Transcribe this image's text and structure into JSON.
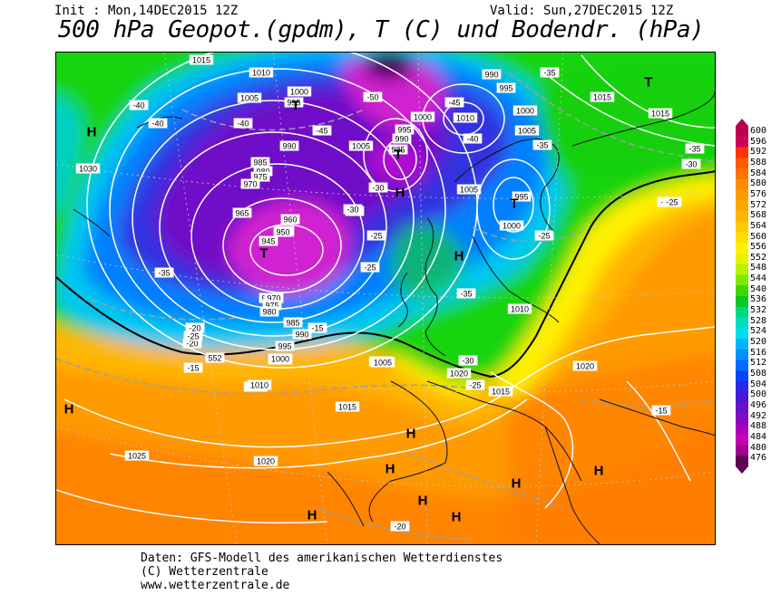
{
  "header": {
    "init": "Init : Mon,14DEC2015 12Z",
    "valid": "Valid: Sun,27DEC2015 12Z",
    "title": "500 hPa Geopot.(gpdm), T (C) und Bodendr. (hPa)"
  },
  "footer": {
    "line1": "Daten: GFS-Modell des amerikanischen Wetterdienstes",
    "line2": "(C) Wetterzentrale",
    "line3": "www.wetterzentrale.de"
  },
  "scale": {
    "values": [
      "600",
      "596",
      "592",
      "588",
      "584",
      "580",
      "576",
      "572",
      "568",
      "564",
      "560",
      "556",
      "552",
      "548",
      "544",
      "540",
      "536",
      "532",
      "528",
      "524",
      "520",
      "516",
      "512",
      "508",
      "504",
      "500",
      "496",
      "492",
      "488",
      "484",
      "480",
      "476"
    ],
    "colors": [
      "#b8004f",
      "#d0005a",
      "#ff3300",
      "#ff5a00",
      "#ff7200",
      "#ff8c00",
      "#ff9a00",
      "#ffa800",
      "#ffb600",
      "#ffc800",
      "#ffde00",
      "#fff200",
      "#e4f400",
      "#b8f000",
      "#7ee800",
      "#3ed800",
      "#0ac81e",
      "#00d880",
      "#00ddbb",
      "#00ddee",
      "#00b4ff",
      "#0090ff",
      "#006cff",
      "#0046ff",
      "#2828ee",
      "#4818d8",
      "#6810c8",
      "#8808c8",
      "#a800c0",
      "#c800b0",
      "#a00090",
      "#600050"
    ]
  },
  "pressure_labels": [
    {
      "t": "1015"
    },
    {
      "t": "1010"
    },
    {
      "t": "1005"
    },
    {
      "t": "1000"
    },
    {
      "t": "995"
    },
    {
      "t": "990"
    },
    {
      "t": "985"
    },
    {
      "t": "980"
    },
    {
      "t": "975"
    },
    {
      "t": "970"
    },
    {
      "t": "965"
    },
    {
      "t": "960"
    },
    {
      "t": "955"
    },
    {
      "t": "950"
    },
    {
      "t": "945"
    },
    {
      "t": "965"
    },
    {
      "t": "970"
    },
    {
      "t": "975"
    },
    {
      "t": "980"
    },
    {
      "t": "985"
    },
    {
      "t": "990"
    },
    {
      "t": "995"
    },
    {
      "t": "1000"
    },
    {
      "t": "1005"
    },
    {
      "t": "1010"
    },
    {
      "t": "1015"
    },
    {
      "t": "1020"
    },
    {
      "t": "1025"
    },
    {
      "t": "1030"
    },
    {
      "t": "990"
    },
    {
      "t": "995"
    },
    {
      "t": "1000"
    },
    {
      "t": "1005"
    },
    {
      "t": "1015"
    },
    {
      "t": "1015"
    },
    {
      "t": "1000"
    },
    {
      "t": "995"
    },
    {
      "t": "990"
    },
    {
      "t": "985"
    },
    {
      "t": "1010"
    },
    {
      "t": "1005"
    },
    {
      "t": "1005"
    },
    {
      "t": "1000"
    },
    {
      "t": "995"
    },
    {
      "t": "1010"
    },
    {
      "t": "1020"
    },
    {
      "t": "1015"
    },
    {
      "t": "1020"
    },
    {
      "t": "1020"
    },
    {
      "t": "1015"
    },
    {
      "t": "1010"
    },
    {
      "t": "1005"
    },
    {
      "t": "1000"
    },
    {
      "t": "995"
    }
  ],
  "temp_labels": [
    {
      "t": "-40"
    },
    {
      "t": "-40"
    },
    {
      "t": "-40"
    },
    {
      "t": "-45"
    },
    {
      "t": "-50"
    },
    {
      "t": "-45"
    },
    {
      "t": "-40"
    },
    {
      "t": "-35"
    },
    {
      "t": "-35"
    },
    {
      "t": "-35"
    },
    {
      "t": "-30"
    },
    {
      "t": "-30"
    },
    {
      "t": "-25"
    },
    {
      "t": "-30"
    },
    {
      "t": "-35"
    },
    {
      "t": "-35"
    },
    {
      "t": "-30"
    },
    {
      "t": "-25"
    },
    {
      "t": "-20"
    },
    {
      "t": "-15"
    },
    {
      "t": "-15"
    },
    {
      "t": "-25"
    },
    {
      "t": "-30"
    },
    {
      "t": "-20"
    },
    {
      "t": "-25"
    },
    {
      "t": "-25"
    },
    {
      "t": "-25"
    },
    {
      "t": "-15"
    },
    {
      "t": "-20"
    },
    {
      "t": "-30"
    }
  ],
  "height_labels": [
    {
      "t": "552"
    }
  ],
  "pressure_centers": [
    {
      "t": "H"
    },
    {
      "t": "H"
    },
    {
      "t": "H"
    },
    {
      "t": "H"
    },
    {
      "t": "H"
    },
    {
      "t": "H"
    },
    {
      "t": "H"
    },
    {
      "t": "H"
    },
    {
      "t": "H"
    },
    {
      "t": "H"
    },
    {
      "t": "T"
    },
    {
      "t": "T"
    },
    {
      "t": "T"
    },
    {
      "t": "T"
    },
    {
      "t": "T"
    },
    {
      "t": "H"
    }
  ]
}
